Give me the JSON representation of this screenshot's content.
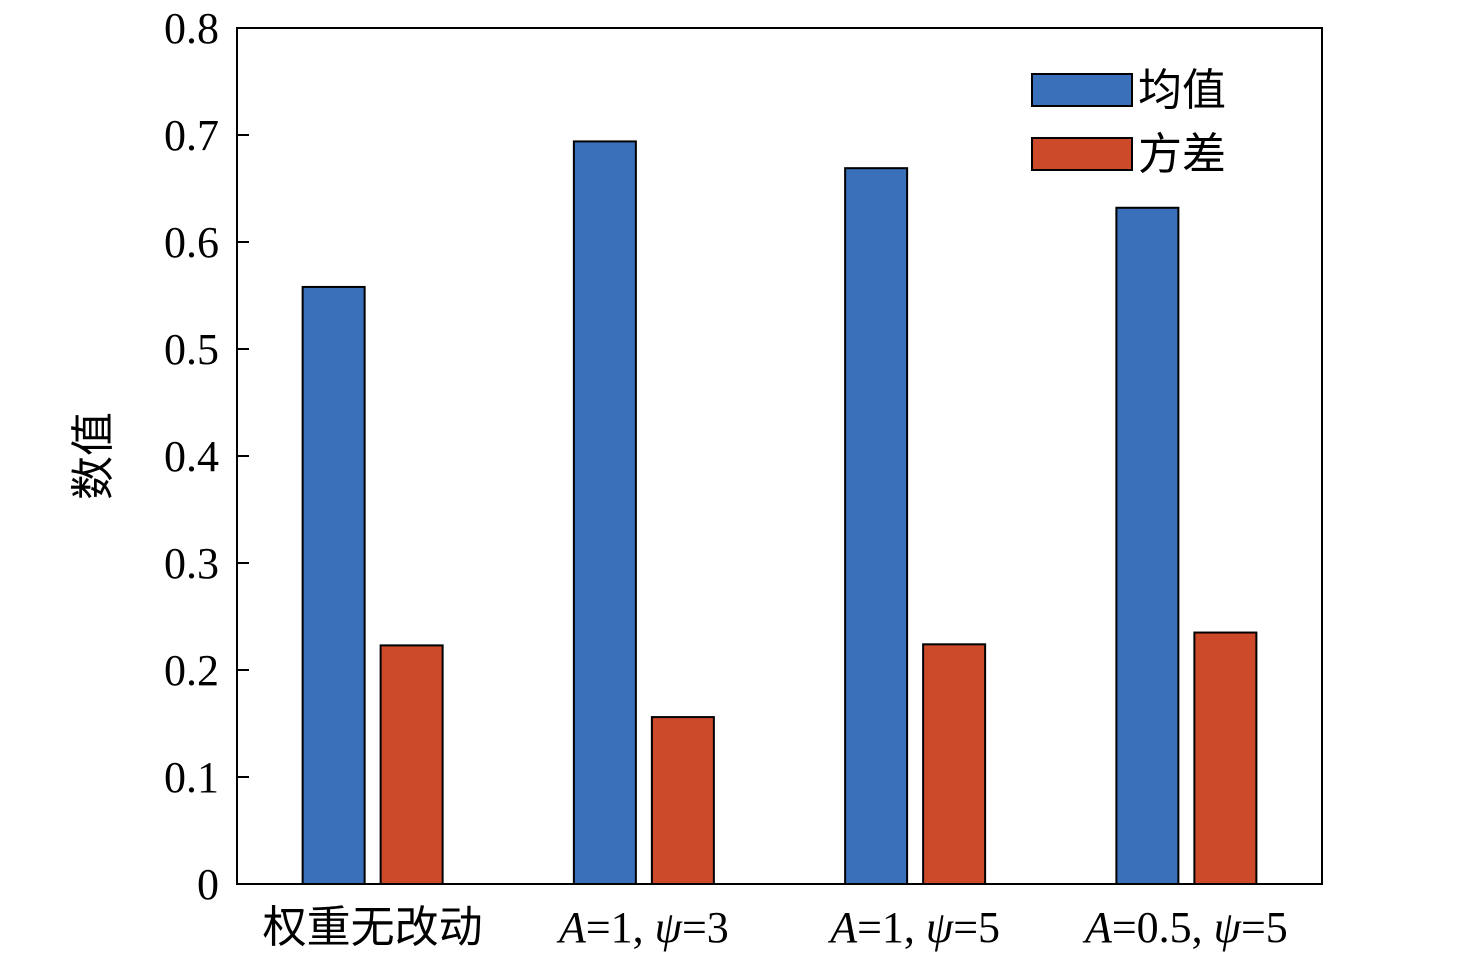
{
  "chart_data": {
    "type": "bar",
    "ylabel": "数值",
    "ylim": [
      0,
      0.8
    ],
    "yticks": [
      "0",
      "0.1",
      "0.2",
      "0.3",
      "0.4",
      "0.5",
      "0.6",
      "0.7",
      "0.8"
    ],
    "categories": [
      [
        {
          "t": "权重无改动"
        }
      ],
      [
        {
          "t": "A",
          "i": true
        },
        {
          "t": "=1, "
        },
        {
          "t": "ψ",
          "i": true
        },
        {
          "t": "=3"
        }
      ],
      [
        {
          "t": "A",
          "i": true
        },
        {
          "t": "=1, "
        },
        {
          "t": "ψ",
          "i": true
        },
        {
          "t": "=5"
        }
      ],
      [
        {
          "t": "A",
          "i": true
        },
        {
          "t": "=0.5, "
        },
        {
          "t": "ψ",
          "i": true
        },
        {
          "t": "=5"
        }
      ]
    ],
    "series": [
      {
        "name": "均值",
        "color": "#3a6fba",
        "values": [
          0.558,
          0.694,
          0.669,
          0.632
        ]
      },
      {
        "name": "方差",
        "color": "#cc4a29",
        "values": [
          0.223,
          0.156,
          0.224,
          0.235
        ]
      }
    ],
    "legend_position": "top-right",
    "grid": false
  }
}
